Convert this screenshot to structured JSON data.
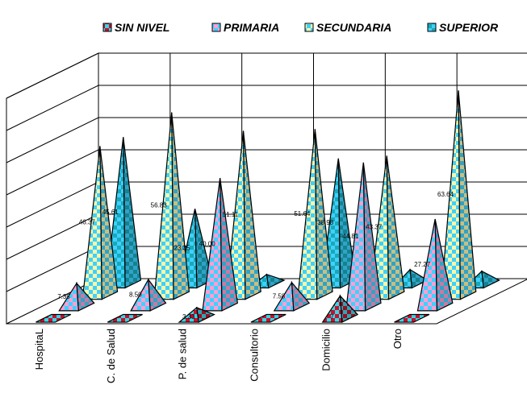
{
  "chart_data": {
    "type": "bar",
    "style": "3d-pyramid",
    "title": "",
    "xlabel": "",
    "ylabel": "",
    "ylim": [
      0,
      70
    ],
    "grid": true,
    "legend_position": "top",
    "categories": [
      "HospitaL",
      "C. de Salud",
      "P. de salud",
      "Consultorio",
      "Domicilio",
      "Otro"
    ],
    "series": [
      {
        "name": "SIN NIVEL",
        "values": [
          0,
          0,
          3.33,
          0,
          7.0,
          0
        ]
      },
      {
        "name": "PRIMARIA",
        "values": [
          7.35,
          8.5,
          40.0,
          7.58,
          44.81,
          27.27
        ]
      },
      {
        "name": "SECUNDARIA",
        "values": [
          46.37,
          56.83,
          51.11,
          51.64,
          43.37,
          63.64
        ]
      },
      {
        "name": "SUPERIOR",
        "values": [
          45.61,
          23.35,
          3.0,
          38.98,
          4.5,
          4.0
        ]
      }
    ],
    "data_labels": [
      [
        "",
        "",
        "3.33",
        "",
        "7",
        ""
      ],
      [
        "7.35",
        "8.50",
        "40.00",
        "7.58",
        "44.81",
        "27.27"
      ],
      [
        "46.37",
        "56.83",
        "51.11",
        "51.64",
        "43.37",
        "63.64"
      ],
      [
        "45.61",
        "23.35",
        "",
        "38.98",
        "",
        ""
      ]
    ],
    "colors": {
      "SIN NIVEL": {
        "a": "#c8102e",
        "b": "#37d6e6"
      },
      "PRIMARIA": {
        "a": "#ff9ed2",
        "b": "#3ed1ff"
      },
      "SECUNDARIA": {
        "a": "#fff5a8",
        "b": "#3ed1ff"
      },
      "SUPERIOR": {
        "a": "#3ed1ff",
        "b": "#1aa7b8"
      }
    }
  }
}
